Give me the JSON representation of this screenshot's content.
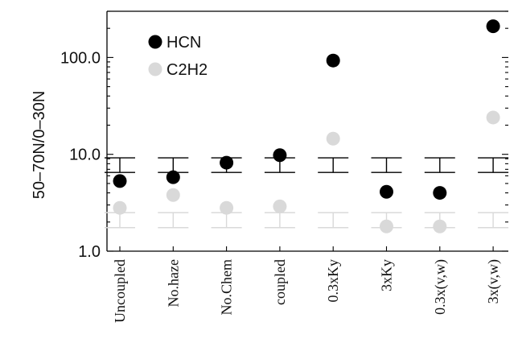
{
  "chart_data": {
    "type": "scatter",
    "title": "",
    "ylabel": "50–70N/0–30N",
    "xlabel": "",
    "yscale": "log",
    "ylim": [
      1.0,
      300.0
    ],
    "yticks": [
      1.0,
      10.0,
      100.0
    ],
    "ytick_labels": [
      "1.0",
      "10.0",
      "100.0"
    ],
    "categories": [
      "Uncoupled",
      "No.haze",
      "No.Chem",
      "coupled",
      "0.3xKy",
      "3xKy",
      "0.3x(v,w)",
      "3x(v,w)"
    ],
    "series": [
      {
        "name": "HCN",
        "color": "#000000",
        "values": [
          5.3,
          5.8,
          8.2,
          9.8,
          93.0,
          4.1,
          4.0,
          210.0
        ],
        "error_band": [
          6.5,
          9.2
        ]
      },
      {
        "name": "C2H2",
        "color": "#d9d9d9",
        "values": [
          2.8,
          3.8,
          2.8,
          2.9,
          14.5,
          1.8,
          1.8,
          24.0
        ],
        "error_band": [
          1.75,
          2.5
        ]
      }
    ],
    "legend": {
      "position": "top-left"
    },
    "grid": false
  }
}
